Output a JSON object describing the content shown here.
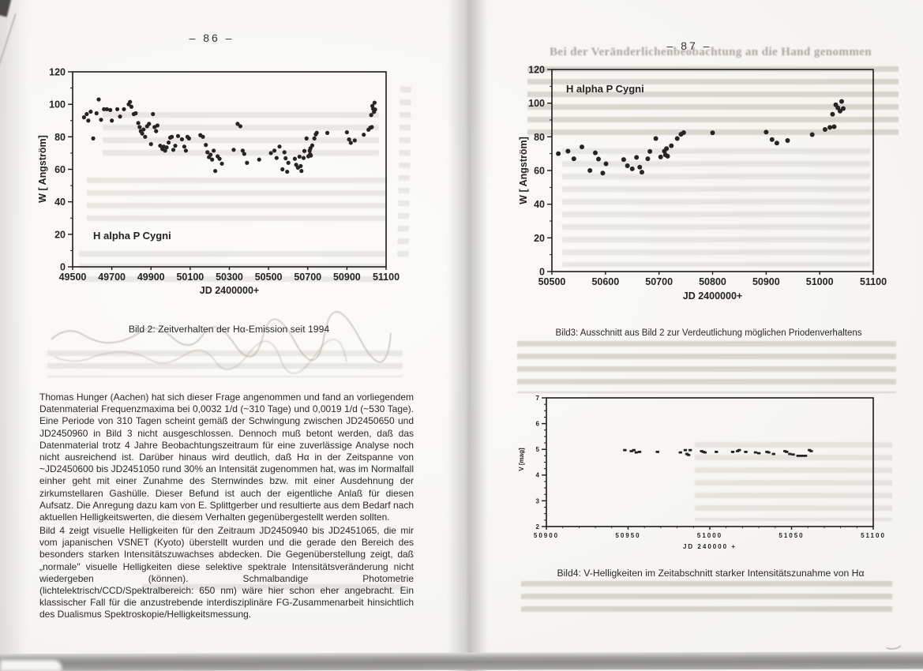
{
  "page_left": {
    "page_number": "– 86 –",
    "paragraph1": "Thomas Hunger (Aachen) hat sich dieser Frage angenommen und fand an vorliegendem Datenmaterial Frequenzmaxima bei 0,0032 1/d (~310 Tage) und 0,0019 1/d (~530 Tage). Eine Periode von 310 Tagen scheint gemäß der Schwingung zwischen JD2450650 und JD2450960 in Bild 3 nicht ausgeschlossen. Dennoch muß betont werden, daß das Datenmaterial trotz 4 Jahre Beobachtungszeitraum für eine zuverlässige Analyse noch nicht ausreichend ist. Darüber hinaus wird deutlich, daß Hα in der Zeitspanne von ~JD2450600 bis JD2451050 rund 30% an Intensität zugenommen hat, was im Normalfall einher geht mit einer Zunahme des Sternwindes bzw. mit einer Ausdehnung der zirkumstellaren Gashülle. Dieser Befund ist auch der eigentliche Anlaß für diesen Aufsatz. Die Anregung dazu kam von E. Splittgerber und resultierte aus dem Bedarf nach aktuellen Helligkeitswerten, die diesem Verhalten gegenübergestellt werden sollten.",
    "paragraph2": "Bild 4 zeigt visuelle Helligkeiten für den Zeitraum JD2450940 bis JD2451065, die mir vom japanischen VSNET (Kyoto) überstellt wurden und die gerade den Bereich des besonders starken Intensitätszuwachses abdecken. Die Gegenüberstellung zeigt, daß „normale\" visuelle Helligkeiten diese selektive spektrale Intensitätsveränderung nicht wiedergeben (können). Schmalbandige Photometrie (lichtelektrisch/CCD/Spektralbereich: 650 nm) wäre hier schon eher angebracht. Ein klassischer Fall für die anzustrebende interdisziplinäre FG-Zusammenarbeit hinsichtlich des Dualismus Spektroskopie/Helligkeitsmessung."
  },
  "page_right": {
    "page_number": "– 87 –",
    "bleedthrough_heading": "Bei der Veränderlichenbeobachtung an die Hand genommen"
  },
  "colors": {
    "ink": "#1d1c1a",
    "point": "#262522",
    "paper": "#fbfaf7"
  },
  "chart_data": [
    {
      "id": "bild2",
      "type": "scatter",
      "star_label": "H alpha  P Cygni",
      "xlabel": "JD 2400000+",
      "ylabel": "W [ Angström]",
      "xlim": [
        49500,
        51100
      ],
      "ylim": [
        0,
        120
      ],
      "xticks": [
        49500,
        49700,
        49900,
        50100,
        50300,
        50500,
        50700,
        50900,
        51100
      ],
      "yticks": [
        0,
        20,
        40,
        60,
        80,
        100,
        120
      ],
      "y_minor_step": 10,
      "x_minor_step": null,
      "caption": "Bild 2: Zeitverhalten der Hα-Emission seit 1994",
      "points": [
        [
          49558,
          92
        ],
        [
          49572,
          94
        ],
        [
          49580,
          90
        ],
        [
          49592,
          95.5
        ],
        [
          49605,
          79
        ],
        [
          49622,
          94.5
        ],
        [
          49633,
          103
        ],
        [
          49645,
          90.5
        ],
        [
          49660,
          97
        ],
        [
          49675,
          97
        ],
        [
          49692,
          96.5
        ],
        [
          49700,
          90
        ],
        [
          49728,
          97
        ],
        [
          49742,
          92.5
        ],
        [
          49762,
          97
        ],
        [
          49786,
          100
        ],
        [
          49793,
          101.5
        ],
        [
          49800,
          98.5
        ],
        [
          49812,
          94
        ],
        [
          49822,
          94.5
        ],
        [
          49835,
          88.5
        ],
        [
          49842,
          86
        ],
        [
          49848,
          83.5
        ],
        [
          49855,
          82
        ],
        [
          49862,
          84.5
        ],
        [
          49870,
          80
        ],
        [
          49880,
          86.5
        ],
        [
          49890,
          88
        ],
        [
          49900,
          75.5
        ],
        [
          49910,
          94
        ],
        [
          49918,
          86
        ],
        [
          49926,
          83.5
        ],
        [
          49933,
          87
        ],
        [
          49947,
          74.5
        ],
        [
          49958,
          72.5
        ],
        [
          49965,
          74
        ],
        [
          49972,
          71.5
        ],
        [
          49980,
          73.5
        ],
        [
          49990,
          76.5
        ],
        [
          49998,
          79.5
        ],
        [
          50006,
          80
        ],
        [
          50014,
          72
        ],
        [
          50024,
          74.5
        ],
        [
          50038,
          80.5
        ],
        [
          50058,
          78.5
        ],
        [
          50070,
          74
        ],
        [
          50078,
          71.5
        ],
        [
          50086,
          80
        ],
        [
          50094,
          79
        ],
        [
          50152,
          81
        ],
        [
          50165,
          80
        ],
        [
          50180,
          75
        ],
        [
          50188,
          70.5
        ],
        [
          50196,
          67.5
        ],
        [
          50204,
          69
        ],
        [
          50212,
          66
        ],
        [
          50220,
          71.5
        ],
        [
          50228,
          59
        ],
        [
          50240,
          68
        ],
        [
          50250,
          66.5
        ],
        [
          50262,
          63.5
        ],
        [
          50322,
          72
        ],
        [
          50342,
          88
        ],
        [
          50356,
          86.5
        ],
        [
          50368,
          71.5
        ],
        [
          50376,
          69.5
        ],
        [
          50390,
          64
        ],
        [
          50452,
          66
        ],
        [
          50512,
          70
        ],
        [
          50530,
          71.5
        ],
        [
          50541,
          67
        ],
        [
          50556,
          74
        ],
        [
          50571,
          60
        ],
        [
          50581,
          70.5
        ],
        [
          50587,
          66.8
        ],
        [
          50595,
          58.5
        ],
        [
          50601,
          64
        ],
        [
          50634,
          66.5
        ],
        [
          50641,
          62.8
        ],
        [
          50650,
          61
        ],
        [
          50658,
          67.8
        ],
        [
          50664,
          62
        ],
        [
          50668,
          59
        ],
        [
          50679,
          67
        ],
        [
          50683,
          71.3
        ],
        [
          50694,
          79
        ],
        [
          50703,
          68
        ],
        [
          50710,
          71.5
        ],
        [
          50712,
          69.3
        ],
        [
          50714,
          73
        ],
        [
          50716,
          68.5
        ],
        [
          50723,
          74.7
        ],
        [
          50734,
          79
        ],
        [
          50741,
          81.5
        ],
        [
          50746,
          82.5
        ],
        [
          50800,
          82.4
        ],
        [
          50900,
          82.8
        ],
        [
          50911,
          78.4
        ],
        [
          50920,
          76.3
        ],
        [
          50940,
          77.8
        ],
        [
          50986,
          81.3
        ],
        [
          51010,
          84.4
        ],
        [
          51019,
          85.6
        ],
        [
          51024,
          93.4
        ],
        [
          51027,
          86
        ],
        [
          51030,
          99
        ],
        [
          51034,
          97.2
        ],
        [
          51038,
          95.3
        ],
        [
          51041,
          101
        ],
        [
          51044,
          96.8
        ]
      ]
    },
    {
      "id": "bild3",
      "type": "scatter",
      "star_label": "H alpha  P Cygni",
      "xlabel": "JD 2400000+",
      "ylabel": "W [ Angström]",
      "xlim": [
        50500,
        51100
      ],
      "ylim": [
        0,
        120
      ],
      "xticks": [
        50500,
        50600,
        50700,
        50800,
        50900,
        51000,
        51100
      ],
      "yticks": [
        0,
        20,
        40,
        60,
        80,
        100,
        120
      ],
      "y_minor_step": 10,
      "x_minor_step": null,
      "caption": "Bild3:  Ausschnitt aus Bild 2 zur Verdeutlichung möglichen Priodenverhaltens",
      "points": [
        [
          50512,
          70
        ],
        [
          50530,
          71.5
        ],
        [
          50541,
          67
        ],
        [
          50556,
          74
        ],
        [
          50571,
          60
        ],
        [
          50581,
          70.5
        ],
        [
          50587,
          66.8
        ],
        [
          50595,
          58.5
        ],
        [
          50601,
          64
        ],
        [
          50634,
          66.5
        ],
        [
          50641,
          62.8
        ],
        [
          50650,
          61
        ],
        [
          50658,
          67.8
        ],
        [
          50664,
          62
        ],
        [
          50668,
          59
        ],
        [
          50679,
          67
        ],
        [
          50683,
          71.3
        ],
        [
          50694,
          79
        ],
        [
          50703,
          68
        ],
        [
          50710,
          71.5
        ],
        [
          50712,
          69.3
        ],
        [
          50714,
          73
        ],
        [
          50716,
          68.5
        ],
        [
          50723,
          74.7
        ],
        [
          50734,
          79
        ],
        [
          50741,
          81.5
        ],
        [
          50746,
          82.5
        ],
        [
          50800,
          82.4
        ],
        [
          50900,
          82.8
        ],
        [
          50911,
          78.4
        ],
        [
          50920,
          76.3
        ],
        [
          50940,
          77.8
        ],
        [
          50986,
          81.3
        ],
        [
          51010,
          84.4
        ],
        [
          51019,
          85.6
        ],
        [
          51024,
          93.4
        ],
        [
          51027,
          86
        ],
        [
          51030,
          99
        ],
        [
          51034,
          97.2
        ],
        [
          51038,
          95.3
        ],
        [
          51041,
          101
        ],
        [
          51044,
          96.8
        ]
      ]
    },
    {
      "id": "bild4",
      "type": "scatter",
      "star_label": null,
      "xlabel": "JD 240000 +",
      "ylabel": "V [mag]",
      "xlim": [
        50900,
        51100
      ],
      "ylim": [
        2,
        7
      ],
      "xticks": [
        50900,
        50950,
        51000,
        51050,
        51100
      ],
      "yticks": [
        2,
        3,
        4,
        5,
        6,
        7
      ],
      "y_minor_step": 0.25,
      "x_minor_step": 10,
      "caption": "Bild4: V-Helligkeiten im Zeitabschnitt starker Intensitätszunahme von Hα",
      "points": [
        [
          50948,
          4.97
        ],
        [
          50952,
          4.93
        ],
        [
          50953.5,
          4.97
        ],
        [
          50955,
          4.88
        ],
        [
          50957,
          4.9
        ],
        [
          50968,
          4.9
        ],
        [
          50982,
          4.88
        ],
        [
          50985,
          4.97
        ],
        [
          50986,
          4.82
        ],
        [
          50987,
          4.78
        ],
        [
          50988,
          4.97
        ],
        [
          50995,
          4.93
        ],
        [
          50996,
          4.9
        ],
        [
          50997,
          4.88
        ],
        [
          51004,
          4.9
        ],
        [
          51014,
          4.9
        ],
        [
          51017,
          4.93
        ],
        [
          51018,
          4.97
        ],
        [
          51022,
          4.9
        ],
        [
          51028,
          4.88
        ],
        [
          51030,
          4.85
        ],
        [
          51035,
          4.9
        ],
        [
          51036,
          4.88
        ],
        [
          51039,
          4.82
        ],
        [
          51046,
          4.93
        ],
        [
          51047,
          4.9
        ],
        [
          51049,
          4.82
        ],
        [
          51051,
          4.8
        ],
        [
          51054,
          4.75
        ],
        [
          51055.5,
          4.75
        ],
        [
          51057,
          4.75
        ],
        [
          51058.5,
          4.75
        ],
        [
          51061,
          4.97
        ],
        [
          51062,
          4.93
        ]
      ]
    }
  ]
}
